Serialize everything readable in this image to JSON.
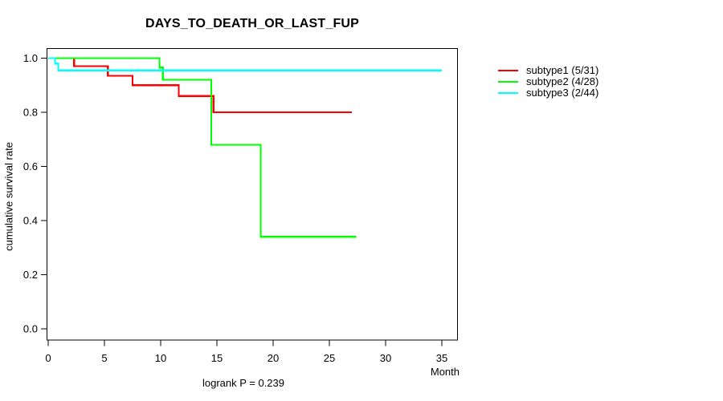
{
  "chart_data": {
    "type": "line",
    "chart_style": "kaplan-meier-step-curves",
    "title": "DAYS_TO_DEATH_OR_LAST_FUP",
    "xlabel": "Month",
    "ylabel": "cumulative survival rate",
    "footnote": "logrank P = 0.239",
    "x_ticks": [
      "0",
      "5",
      "10",
      "15",
      "20",
      "25",
      "30",
      "35"
    ],
    "x_tick_values": [
      0,
      5,
      10,
      15,
      20,
      25,
      30,
      35
    ],
    "y_ticks": [
      "0.0",
      "0.2",
      "0.4",
      "0.6",
      "0.8",
      "1.0"
    ],
    "y_tick_values": [
      0.0,
      0.2,
      0.4,
      0.6,
      0.8,
      1.0
    ],
    "xlim": [
      0,
      35
    ],
    "ylim": [
      0,
      1
    ],
    "grid": false,
    "legend_position": "right-outside",
    "axis_color": "#000000",
    "series": [
      {
        "name": "subtype1 (5/31)",
        "color": "#ff0000",
        "events": [
          [
            0,
            1.0
          ],
          [
            2.3,
            0.97
          ],
          [
            5.3,
            0.935
          ],
          [
            7.5,
            0.9
          ],
          [
            11.6,
            0.86
          ],
          [
            14.7,
            0.8
          ]
        ],
        "end_month": 27.0
      },
      {
        "name": "subtype2 (4/28)",
        "color": "#00ff00",
        "events": [
          [
            0,
            1.0
          ],
          [
            9.9,
            0.965
          ],
          [
            10.2,
            0.92
          ],
          [
            14.5,
            0.68
          ],
          [
            18.9,
            0.34
          ]
        ],
        "end_month": 27.4
      },
      {
        "name": "subtype3 (2/44)",
        "color": "#00ffff",
        "events": [
          [
            0,
            1.0
          ],
          [
            0.6,
            0.98
          ],
          [
            0.9,
            0.955
          ]
        ],
        "end_month": 35.0
      }
    ]
  }
}
